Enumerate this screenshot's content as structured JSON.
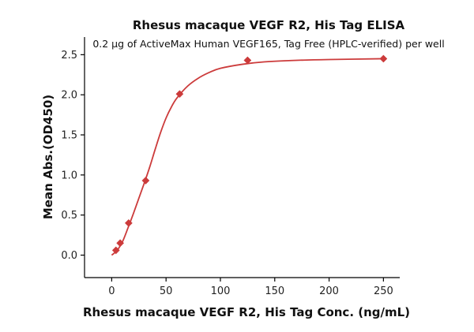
{
  "chart_data": {
    "type": "scatter",
    "title": "Rhesus macaque VEGF R2, His Tag ELISA",
    "subtitle": "0.2 μg of ActiveMax Human VEGF165, Tag Free (HPLC-verified) per well",
    "xlabel": "Rhesus macaque VEGF R2, His Tag Conc. (ng/mL)",
    "ylabel": "Mean Abs.(OD450)",
    "xlim": [
      -25,
      265
    ],
    "ylim": [
      -0.28,
      2.72
    ],
    "xticks": [
      0,
      50,
      100,
      150,
      200,
      250
    ],
    "yticks": [
      0.0,
      0.5,
      1.0,
      1.5,
      2.0,
      2.5
    ],
    "xtick_labels": [
      "0",
      "50",
      "100",
      "150",
      "200",
      "250"
    ],
    "ytick_labels": [
      "0.0",
      "0.5",
      "1.0",
      "1.5",
      "2.0",
      "2.5"
    ],
    "grid": false,
    "legend": "none",
    "series": [
      {
        "marker": "diamond",
        "color": "#cc3b3b",
        "points": [
          {
            "x": 3.9,
            "y": 0.06
          },
          {
            "x": 7.8,
            "y": 0.15
          },
          {
            "x": 15.6,
            "y": 0.4
          },
          {
            "x": 31.25,
            "y": 0.93
          },
          {
            "x": 62.5,
            "y": 2.01
          },
          {
            "x": 125,
            "y": 2.43
          },
          {
            "x": 250,
            "y": 2.45
          }
        ],
        "fit_curve": {
          "color": "#cc3b3b",
          "points": [
            {
              "x": 0,
              "y": 0.0
            },
            {
              "x": 5,
              "y": 0.06
            },
            {
              "x": 10,
              "y": 0.17
            },
            {
              "x": 15,
              "y": 0.34
            },
            {
              "x": 20,
              "y": 0.52
            },
            {
              "x": 25,
              "y": 0.71
            },
            {
              "x": 30,
              "y": 0.9
            },
            {
              "x": 35,
              "y": 1.1
            },
            {
              "x": 40,
              "y": 1.32
            },
            {
              "x": 45,
              "y": 1.53
            },
            {
              "x": 50,
              "y": 1.71
            },
            {
              "x": 55,
              "y": 1.85
            },
            {
              "x": 60,
              "y": 1.96
            },
            {
              "x": 70,
              "y": 2.11
            },
            {
              "x": 80,
              "y": 2.21
            },
            {
              "x": 90,
              "y": 2.28
            },
            {
              "x": 100,
              "y": 2.33
            },
            {
              "x": 120,
              "y": 2.38
            },
            {
              "x": 140,
              "y": 2.41
            },
            {
              "x": 170,
              "y": 2.43
            },
            {
              "x": 200,
              "y": 2.44
            },
            {
              "x": 250,
              "y": 2.45
            }
          ]
        }
      }
    ]
  }
}
